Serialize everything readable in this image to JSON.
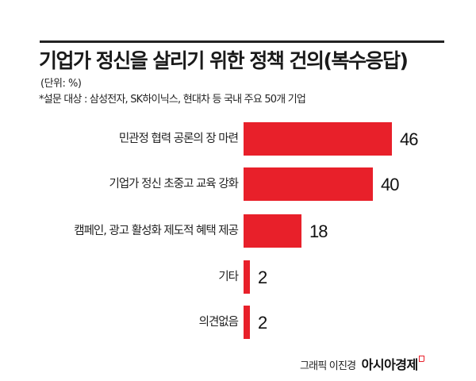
{
  "header": {
    "title": "기업가 정신을 살리기 위한 정책 건의(복수응답)",
    "unit": "(단위: %)",
    "note": "*설문 대상 : 삼성전자, SK하이닉스, 현대차 등 국내 주요 50개 기업"
  },
  "colors": {
    "bar": "#e8202a",
    "rule": "#222222"
  },
  "rows": [
    {
      "label": "민관정 협력 공론의 장 마련",
      "value": "46"
    },
    {
      "label": "기업가 정신 초중고 교육 강화",
      "value": "40"
    },
    {
      "label": "캠페인, 광고 활성화 제도적 혜택 제공",
      "value": "18"
    },
    {
      "label": "기타",
      "value": "2"
    },
    {
      "label": "의견없음",
      "value": "2"
    }
  ],
  "footer": {
    "credit": "그래픽 이진경",
    "brand": "아시아경제"
  },
  "chart_data": {
    "type": "bar",
    "orientation": "horizontal",
    "title": "기업가 정신을 살리기 위한 정책 건의(복수응답)",
    "subtitle": "*설문 대상 : 삼성전자, SK하이닉스, 현대차 등 국내 주요 50개 기업",
    "unit": "%",
    "categories": [
      "민관정 협력 공론의 장 마련",
      "기업가 정신 초중고 교육 강화",
      "캠페인, 광고 활성화 제도적 혜택 제공",
      "기타",
      "의견없음"
    ],
    "values": [
      46,
      40,
      18,
      2,
      2
    ],
    "xlabel": "",
    "ylabel": "",
    "grid": false,
    "legend": null,
    "data_labels": true
  }
}
